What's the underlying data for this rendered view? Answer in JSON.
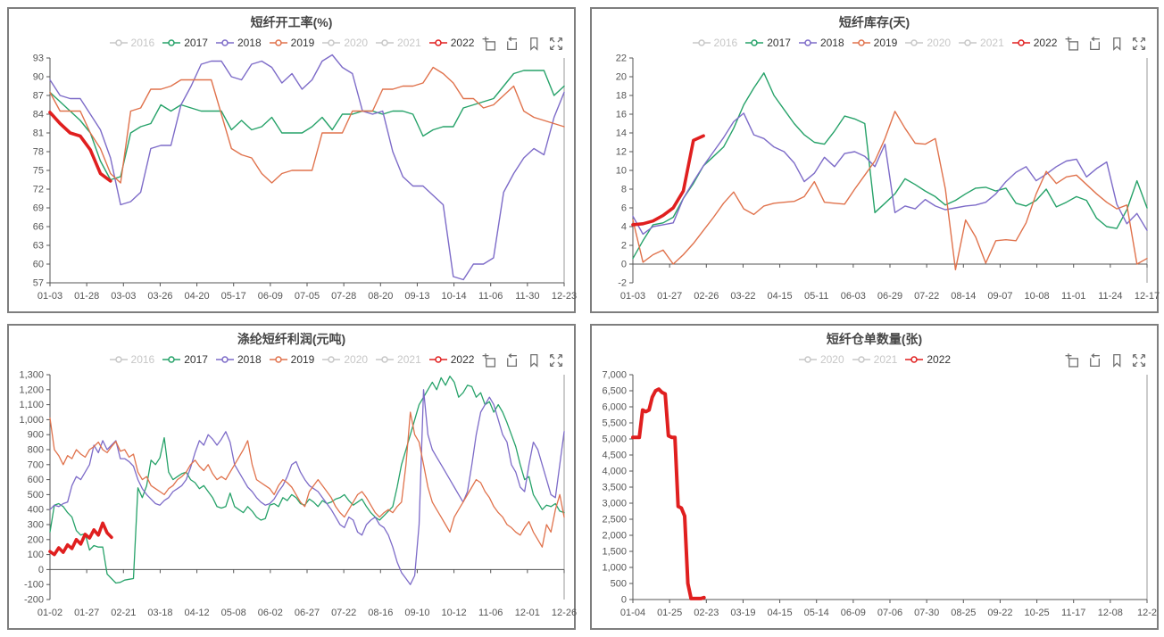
{
  "accent_colors": {
    "green_2017": "#26a269",
    "purple_2018": "#7d6bc8",
    "orange_2019": "#e0724c",
    "red_2022": "#e01f1f",
    "inactive_gray": "#c7c7c7",
    "axis_text": "#555555",
    "border_gray": "#7e7e7e"
  },
  "toolbar_icons": [
    "data-zoom-icon",
    "restore-icon",
    "save-image-icon",
    "fullscreen-icon"
  ],
  "chart_data": [
    {
      "type": "line",
      "title": "短纤开工率(%)",
      "legend": [
        {
          "label": "2016",
          "color": "#c7c7c7",
          "active": false
        },
        {
          "label": "2017",
          "color": "#26a269",
          "active": true
        },
        {
          "label": "2018",
          "color": "#7d6bc8",
          "active": true
        },
        {
          "label": "2019",
          "color": "#e0724c",
          "active": true
        },
        {
          "label": "2020",
          "color": "#c7c7c7",
          "active": false
        },
        {
          "label": "2021",
          "color": "#c7c7c7",
          "active": false
        },
        {
          "label": "2022",
          "color": "#e01f1f",
          "active": true
        }
      ],
      "ylim": [
        57,
        93
      ],
      "ystep": 3,
      "ycomma": false,
      "x_labels": [
        "01-03",
        "01-28",
        "03-03",
        "03-26",
        "04-20",
        "05-17",
        "06-09",
        "07-05",
        "07-28",
        "08-20",
        "09-13",
        "10-14",
        "11-06",
        "11-30",
        "12-23"
      ],
      "n": 52,
      "series": [
        {
          "name": "2017",
          "color": "#26a269",
          "width": 1.4,
          "values": [
            87.5,
            86,
            84.5,
            83,
            81,
            76.5,
            73.5,
            74,
            81,
            82,
            82.5,
            85.5,
            84.5,
            85.5,
            85,
            84.5,
            84.5,
            84.5,
            81.5,
            83,
            81.5,
            82,
            83.5,
            81,
            81,
            81,
            82,
            83.5,
            81.5,
            84,
            84,
            84.5,
            84.5,
            84,
            84.5,
            84.5,
            84,
            80.5,
            81.5,
            82,
            82,
            85,
            85.5,
            86,
            86.5,
            88.5,
            90.5,
            91,
            91,
            91,
            87,
            88.5
          ]
        },
        {
          "name": "2018",
          "color": "#7d6bc8",
          "width": 1.4,
          "values": [
            89.5,
            87,
            86.5,
            86.5,
            84,
            81.5,
            77,
            69.5,
            70,
            71.5,
            78.5,
            79,
            79,
            85.5,
            88.5,
            92,
            92.5,
            92.5,
            90,
            89.5,
            92,
            92.5,
            91.5,
            89,
            90.5,
            88,
            89.5,
            92.5,
            93.5,
            91.5,
            90.5,
            84.5,
            84,
            84.5,
            78,
            74,
            72.5,
            72.5,
            71,
            69.5,
            58,
            57.5,
            60,
            60,
            61,
            71.5,
            74.5,
            77,
            78.5,
            77.5,
            83.5,
            87.5
          ]
        },
        {
          "name": "2019",
          "color": "#e0724c",
          "width": 1.4,
          "values": [
            87.5,
            84.5,
            84.5,
            84.5,
            81,
            78.5,
            74.5,
            73,
            84.5,
            85,
            88,
            88,
            88.5,
            89.5,
            89.5,
            89.5,
            89.5,
            84,
            78.5,
            77.5,
            77,
            74.5,
            73,
            74.5,
            75,
            75,
            75,
            81,
            81,
            81,
            84.5,
            84.5,
            84.5,
            88,
            88,
            88.5,
            88.5,
            89,
            91.5,
            90.5,
            89,
            86.5,
            86.5,
            85,
            85.5,
            87,
            88.5,
            84.5,
            83.5,
            83,
            82.5,
            82
          ]
        },
        {
          "name": "2022",
          "color": "#e01f1f",
          "width": 3.6,
          "values": [
            84.3,
            82.5,
            81,
            80.5,
            78.3,
            74.5,
            73.3
          ]
        }
      ]
    },
    {
      "type": "line",
      "title": "短纤库存(天)",
      "legend": [
        {
          "label": "2016",
          "color": "#c7c7c7",
          "active": false
        },
        {
          "label": "2017",
          "color": "#26a269",
          "active": true
        },
        {
          "label": "2018",
          "color": "#7d6bc8",
          "active": true
        },
        {
          "label": "2019",
          "color": "#e0724c",
          "active": true
        },
        {
          "label": "2020",
          "color": "#c7c7c7",
          "active": false
        },
        {
          "label": "2021",
          "color": "#c7c7c7",
          "active": false
        },
        {
          "label": "2022",
          "color": "#e01f1f",
          "active": true
        }
      ],
      "ylim": [
        -2,
        22
      ],
      "ystep": 2,
      "ycomma": false,
      "x_labels": [
        "01-03",
        "01-27",
        "02-26",
        "03-22",
        "04-15",
        "05-11",
        "06-03",
        "06-29",
        "07-22",
        "08-14",
        "09-07",
        "10-08",
        "11-01",
        "11-24",
        "12-17"
      ],
      "n": 52,
      "series": [
        {
          "name": "2017",
          "color": "#26a269",
          "width": 1.4,
          "values": [
            0.6,
            2.5,
            4.2,
            4.4,
            5,
            7,
            8.6,
            10.5,
            11.5,
            12.5,
            14.5,
            17,
            18.8,
            20.4,
            18,
            16.5,
            15,
            13.8,
            13,
            12.8,
            14.2,
            15.8,
            15.5,
            15,
            5.5,
            6.5,
            7.5,
            9.1,
            8.5,
            7.8,
            7.2,
            6.3,
            6.8,
            7.5,
            8.1,
            8.2,
            7.8,
            8.1,
            6.5,
            6.2,
            6.8,
            8,
            6.1,
            6.6,
            7.2,
            6.8,
            4.9,
            4,
            3.8,
            5.8,
            8.9,
            6
          ]
        },
        {
          "name": "2018",
          "color": "#7d6bc8",
          "width": 1.4,
          "values": [
            5.1,
            3.2,
            4,
            4.2,
            4.4,
            7,
            8.8,
            10.5,
            12,
            13.5,
            15.2,
            16.1,
            13.8,
            13.4,
            12.5,
            12,
            10.8,
            8.8,
            9.7,
            11.4,
            10.4,
            11.8,
            12,
            11.5,
            10.4,
            12.8,
            5.5,
            6.2,
            5.9,
            6.9,
            6.2,
            5.8,
            6,
            6.2,
            6.3,
            6.6,
            7.5,
            8.8,
            9.8,
            10.4,
            8.9,
            9.6,
            10.4,
            11,
            11.2,
            9.3,
            10.2,
            10.9,
            6.4,
            4.3,
            5.4,
            3.6
          ]
        },
        {
          "name": "2019",
          "color": "#e0724c",
          "width": 1.4,
          "values": [
            4.7,
            0.2,
            1,
            1.5,
            0,
            1,
            2.2,
            3.6,
            5,
            6.5,
            7.7,
            5.9,
            5.3,
            6.2,
            6.5,
            6.6,
            6.7,
            7.2,
            8.8,
            6.6,
            6.5,
            6.4,
            8,
            9.5,
            11,
            13.4,
            16.3,
            14.5,
            12.9,
            12.8,
            13.4,
            8,
            -0.6,
            4.7,
            2.9,
            0.1,
            2.5,
            2.6,
            2.5,
            4.4,
            7.5,
            9.9,
            8.6,
            9.3,
            9.5,
            8.5,
            7.5,
            6.6,
            5.9,
            6.3,
            0,
            0.6
          ]
        },
        {
          "name": "2022",
          "color": "#e01f1f",
          "width": 3.6,
          "values": [
            4.2,
            4.3,
            4.6,
            5.2,
            6,
            7.8,
            13.2,
            13.7
          ]
        }
      ]
    },
    {
      "type": "line",
      "title": "涤纶短纤利润(元吨)",
      "legend": [
        {
          "label": "2016",
          "color": "#c7c7c7",
          "active": false
        },
        {
          "label": "2017",
          "color": "#26a269",
          "active": true
        },
        {
          "label": "2018",
          "color": "#7d6bc8",
          "active": true
        },
        {
          "label": "2019",
          "color": "#e0724c",
          "active": true
        },
        {
          "label": "2020",
          "color": "#c7c7c7",
          "active": false
        },
        {
          "label": "2021",
          "color": "#c7c7c7",
          "active": false
        },
        {
          "label": "2022",
          "color": "#e01f1f",
          "active": true
        }
      ],
      "ylim": [
        -200,
        1300
      ],
      "ystep": 100,
      "ycomma": true,
      "x_labels": [
        "01-02",
        "01-27",
        "02-21",
        "03-18",
        "04-12",
        "05-08",
        "06-02",
        "06-27",
        "07-22",
        "08-16",
        "09-10",
        "10-12",
        "11-06",
        "12-01",
        "12-26"
      ],
      "n": 118,
      "series": [
        {
          "name": "2017",
          "color": "#26a269",
          "width": 1.3,
          "values": [
            250,
            430,
            440,
            420,
            380,
            350,
            260,
            230,
            240,
            130,
            160,
            150,
            150,
            -30,
            -60,
            -90,
            -85,
            -70,
            -65,
            -60,
            545,
            480,
            560,
            730,
            700,
            745,
            880,
            650,
            600,
            620,
            640,
            650,
            600,
            580,
            540,
            560,
            520,
            480,
            420,
            410,
            420,
            510,
            420,
            400,
            380,
            420,
            390,
            350,
            330,
            340,
            430,
            440,
            420,
            480,
            460,
            500,
            480,
            440,
            430,
            470,
            450,
            420,
            460,
            440,
            450,
            470,
            480,
            500,
            460,
            430,
            450,
            470,
            420,
            380,
            350,
            330,
            360,
            390,
            420,
            550,
            700,
            800,
            900,
            1000,
            1100,
            1150,
            1200,
            1250,
            1200,
            1280,
            1230,
            1290,
            1250,
            1150,
            1180,
            1230,
            1220,
            1150,
            1180,
            1100,
            1120,
            1050,
            1100,
            1050,
            980,
            900,
            820,
            700,
            600,
            620,
            500,
            450,
            400,
            430,
            420,
            440,
            390,
            380
          ]
        },
        {
          "name": "2018",
          "color": "#7d6bc8",
          "width": 1.3,
          "values": [
            400,
            430,
            420,
            440,
            450,
            560,
            620,
            600,
            650,
            700,
            830,
            780,
            860,
            800,
            830,
            860,
            740,
            740,
            720,
            690,
            600,
            540,
            500,
            470,
            440,
            430,
            460,
            480,
            520,
            540,
            560,
            600,
            680,
            780,
            860,
            830,
            900,
            870,
            830,
            870,
            920,
            850,
            700,
            650,
            600,
            550,
            520,
            480,
            450,
            430,
            440,
            470,
            520,
            560,
            620,
            700,
            720,
            650,
            600,
            560,
            540,
            520,
            480,
            440,
            400,
            350,
            300,
            280,
            350,
            330,
            250,
            230,
            300,
            330,
            350,
            300,
            280,
            230,
            150,
            50,
            -20,
            -60,
            -100,
            -40,
            300,
            1200,
            900,
            800,
            750,
            700,
            650,
            600,
            550,
            500,
            450,
            520,
            700,
            900,
            1050,
            1100,
            1150,
            1100,
            1000,
            900,
            850,
            700,
            650,
            550,
            520,
            700,
            850,
            800,
            700,
            600,
            500,
            480,
            700,
            920
          ]
        },
        {
          "name": "2019",
          "color": "#e0724c",
          "width": 1.3,
          "values": [
            1010,
            800,
            760,
            700,
            760,
            740,
            800,
            770,
            750,
            800,
            820,
            850,
            800,
            780,
            820,
            855,
            790,
            800,
            750,
            770,
            650,
            600,
            620,
            560,
            540,
            520,
            500,
            540,
            560,
            600,
            620,
            650,
            700,
            730,
            690,
            660,
            700,
            640,
            600,
            620,
            600,
            650,
            700,
            750,
            800,
            860,
            700,
            600,
            580,
            560,
            540,
            500,
            560,
            600,
            580,
            550,
            500,
            450,
            420,
            520,
            560,
            600,
            560,
            520,
            480,
            420,
            380,
            350,
            400,
            450,
            500,
            520,
            480,
            430,
            380,
            350,
            380,
            400,
            380,
            420,
            450,
            700,
            1050,
            900,
            850,
            700,
            550,
            450,
            400,
            350,
            300,
            250,
            350,
            400,
            450,
            500,
            550,
            600,
            580,
            520,
            480,
            420,
            380,
            350,
            300,
            280,
            250,
            230,
            280,
            320,
            250,
            200,
            150,
            300,
            250,
            400,
            500,
            350
          ]
        },
        {
          "name": "2022",
          "color": "#e01f1f",
          "width": 3.6,
          "values": [
            120,
            100,
            145,
            115,
            165,
            140,
            200,
            170,
            235,
            210,
            265,
            230,
            310,
            245,
            215
          ]
        }
      ]
    },
    {
      "type": "line",
      "title": "短纤仓单数量(张)",
      "legend": [
        {
          "label": "2020",
          "color": "#c7c7c7",
          "active": false
        },
        {
          "label": "2021",
          "color": "#c7c7c7",
          "active": false
        },
        {
          "label": "2022",
          "color": "#e01f1f",
          "active": true
        }
      ],
      "ylim": [
        0,
        7000
      ],
      "ystep": 500,
      "ycomma": true,
      "x_labels": [
        "01-04",
        "01-25",
        "02-23",
        "03-19",
        "04-15",
        "05-14",
        "06-09",
        "07-06",
        "07-30",
        "08-25",
        "09-22",
        "10-25",
        "11-17",
        "12-08",
        "12-2"
      ],
      "n": 160,
      "series": [
        {
          "name": "2022",
          "color": "#e01f1f",
          "width": 4,
          "values": [
            5050,
            5050,
            5050,
            5900,
            5850,
            5900,
            6300,
            6500,
            6550,
            6450,
            6400,
            5100,
            5050,
            5050,
            2900,
            2850,
            2600,
            500,
            30,
            30,
            30,
            30,
            60
          ]
        }
      ]
    }
  ]
}
